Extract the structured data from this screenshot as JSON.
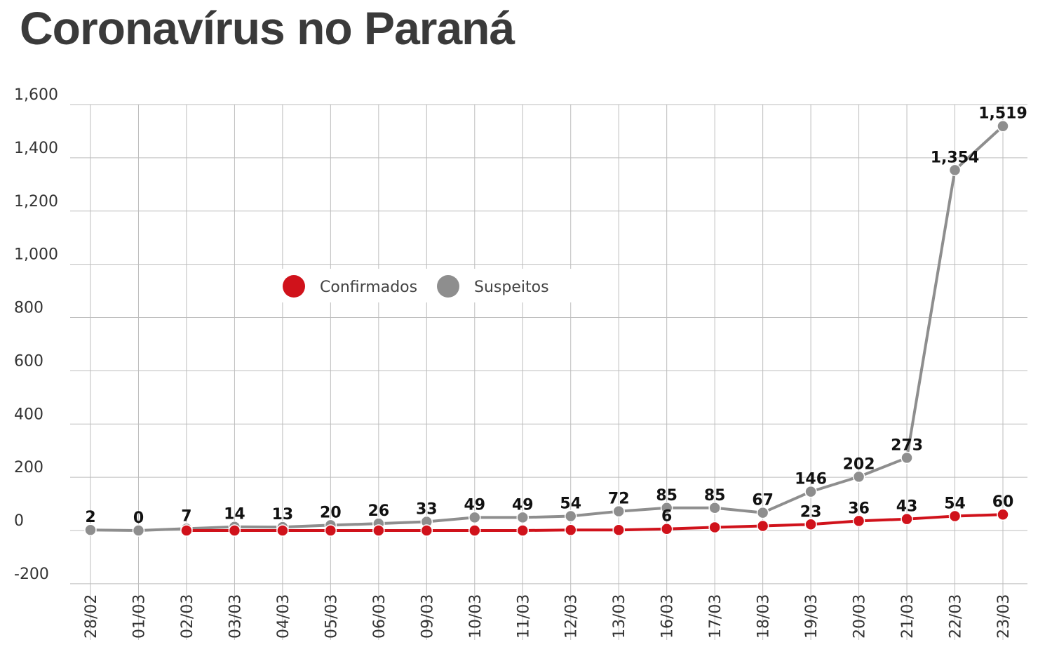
{
  "chart_data": {
    "type": "line",
    "title": "Coronavírus no Paraná",
    "xlabel": "",
    "ylabel": "",
    "ylim": [
      -200,
      1600
    ],
    "yticks": [
      "-200",
      "0",
      "200",
      "400",
      "600",
      "800",
      "1,000",
      "1,200",
      "1,400",
      "1,600"
    ],
    "ytick_values": [
      -200,
      0,
      200,
      400,
      600,
      800,
      1000,
      1200,
      1400,
      1600
    ],
    "categories": [
      "28/02",
      "01/03",
      "02/03",
      "03/03",
      "04/03",
      "05/03",
      "06/03",
      "09/03",
      "10/03",
      "11/03",
      "12/03",
      "13/03",
      "16/03",
      "17/03",
      "18/03",
      "19/03",
      "20/03",
      "21/03",
      "22/03",
      "23/03"
    ],
    "grid": true,
    "legend_position": "center-left",
    "series": [
      {
        "name": "Confirmados",
        "color": "#d0121b",
        "values": [
          null,
          null,
          0,
          0,
          0,
          0,
          0,
          0,
          0,
          0,
          2,
          2,
          6,
          12,
          17,
          23,
          36,
          43,
          54,
          60
        ],
        "labels": [
          null,
          null,
          null,
          null,
          null,
          null,
          null,
          null,
          null,
          null,
          null,
          null,
          "6",
          null,
          null,
          "23",
          "36",
          "43",
          "54",
          "60"
        ]
      },
      {
        "name": "Suspeitos",
        "color": "#8e8e8e",
        "values": [
          2,
          0,
          7,
          14,
          13,
          20,
          26,
          33,
          49,
          49,
          54,
          72,
          85,
          85,
          67,
          146,
          202,
          273,
          1354,
          1519
        ],
        "labels": [
          "2",
          "0",
          "7",
          "14",
          "13",
          "20",
          "26",
          "33",
          "49",
          "49",
          "54",
          "72",
          "85",
          "85",
          "67",
          "146",
          "202",
          "273",
          "1,354",
          "1,519"
        ]
      }
    ]
  }
}
